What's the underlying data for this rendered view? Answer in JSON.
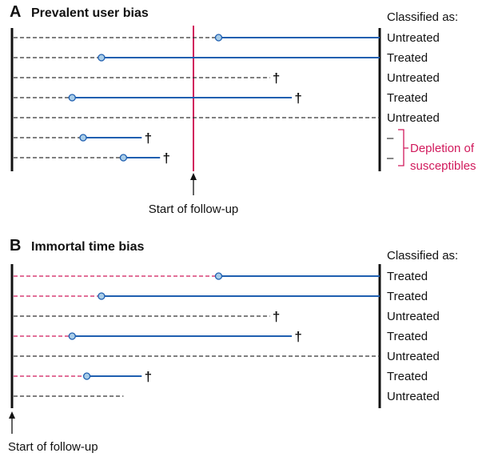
{
  "panel_a": {
    "letter": "A",
    "title": "Prevalent user bias",
    "classified_header": "Classified as:",
    "start_label": "Start of follow-up",
    "depletion_label_line1": "Depletion of",
    "depletion_label_line2": "susceptibles",
    "rows": [
      {
        "class": "Untreated",
        "dash_color": "#333333",
        "treat_start": 0.56,
        "treat_end": 1.0,
        "death": null
      },
      {
        "class": "Treated",
        "dash_color": "#333333",
        "treat_start": 0.24,
        "treat_end": 1.0,
        "death": null
      },
      {
        "class": "Untreated",
        "dash_color": "#333333",
        "treat_start": null,
        "treat_end": null,
        "death": 0.7
      },
      {
        "class": "Treated",
        "dash_color": "#333333",
        "treat_start": 0.16,
        "treat_end": 0.76,
        "death": 0.76
      },
      {
        "class": "Untreated",
        "dash_color": "#333333",
        "treat_start": null,
        "treat_end": null,
        "death": null
      },
      {
        "class": "–",
        "dash_color": "#333333",
        "treat_start": 0.19,
        "treat_end": 0.35,
        "death": 0.35
      },
      {
        "class": "–",
        "dash_color": "#333333",
        "treat_start": 0.3,
        "treat_end": 0.4,
        "death": 0.4
      }
    ]
  },
  "panel_b": {
    "letter": "B",
    "title": "Immortal time bias",
    "classified_header": "Classified as:",
    "start_label": "Start of follow-up",
    "rows": [
      {
        "class": "Treated",
        "dash_color": "#d11a5c",
        "treat_start": 0.56,
        "treat_end": 1.0,
        "death": null
      },
      {
        "class": "Treated",
        "dash_color": "#d11a5c",
        "treat_start": 0.24,
        "treat_end": 1.0,
        "death": null
      },
      {
        "class": "Untreated",
        "dash_color": "#333333",
        "treat_start": null,
        "treat_end": null,
        "death": 0.7
      },
      {
        "class": "Treated",
        "dash_color": "#d11a5c",
        "treat_start": 0.16,
        "treat_end": 0.76,
        "death": 0.76
      },
      {
        "class": "Untreated",
        "dash_color": "#333333",
        "treat_start": null,
        "treat_end": null,
        "death": null
      },
      {
        "class": "Treated",
        "dash_color": "#d11a5c",
        "treat_start": 0.2,
        "treat_end": 0.35,
        "death": 0.35
      },
      {
        "class": "Untreated",
        "dash_color": "#333333",
        "treat_start": null,
        "treat_end": null,
        "death": null,
        "end": 0.3
      }
    ]
  },
  "colors": {
    "treated_line": "#1f5fb0",
    "marker_fill": "#a9cde8",
    "accent": "#d11a5c"
  }
}
